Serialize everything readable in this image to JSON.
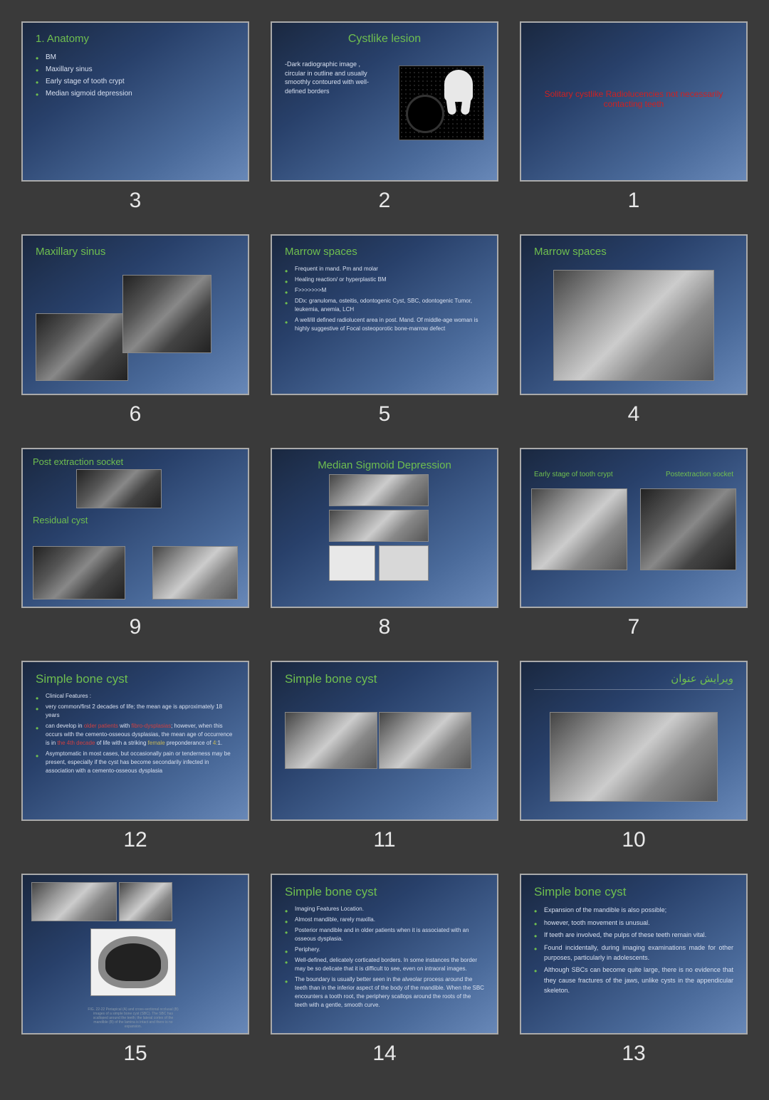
{
  "background": "#3a3a3a",
  "slide_gradient": [
    "#1a2840",
    "#28406a",
    "#4a6a9a",
    "#6888b8"
  ],
  "accent_green": "#6fbf4f",
  "accent_red": "#d02020",
  "slides": [
    {
      "n": 3,
      "title": "1. Anatomy",
      "bullets": [
        "BM",
        "Maxillary sinus",
        "Early stage of tooth crypt",
        "Median sigmoid depression"
      ]
    },
    {
      "n": 2,
      "title": "Cystlike lesion",
      "para": "-Dark radiographic image , circular in outline and usually smoothly contoured with well-defined borders"
    },
    {
      "n": 1,
      "red_text": "Solitary cystlike Radiolucencies not necessarily contacting teeth"
    },
    {
      "n": 6,
      "title": "Maxillary sinus"
    },
    {
      "n": 5,
      "title": "Marrow spaces",
      "bullets": [
        "Frequent in mand. Pm and molar",
        "Healing reaction/ or hyperplastic BM",
        "F>>>>>>>M",
        "DDx: granuloma, osteitis, odontogenic Cyst, SBC, odontogenic Tumor, leukemia, anemia, LCH",
        "A well/ill defined radiolucent area in post. Mand. Of middle-age woman is highly suggestive of Focal osteoporotic bone-marrow defect"
      ]
    },
    {
      "n": 4,
      "title": "Marrow spaces"
    },
    {
      "n": 9,
      "title_a": "Post extraction socket",
      "title_b": "Residual cyst"
    },
    {
      "n": 8,
      "title": "Median Sigmoid Depression"
    },
    {
      "n": 7,
      "label_a": "Early stage of tooth crypt",
      "label_b": "Postextraction socket"
    },
    {
      "n": 12,
      "title": "Simple  bone cyst",
      "lead": "Clinical Features :",
      "bullets": [
        "very common/first 2 decades of life; the mean age is approximately 18 years",
        "can develop in <span class='red-inline'>older patients</span> with <span class='red-inline'>fibro-dysplasias</span>; however, when this occurs with the cemento-osseous dysplasias, the mean age of occurrence is in <span class='red-inline'>the 4th decade</span> of life with a striking <span class='yellow-inline'>female</span> preponderance of <span class='yellow-inline'>4:</span>1.",
        "Asymptomatic in most cases, but occasionally pain or tenderness may be present, especially if the cyst has become secondarily infected in association with a cemento-osseous dysplasia"
      ]
    },
    {
      "n": 11,
      "title": "Simple  bone cyst"
    },
    {
      "n": 10,
      "title_rtl": "ویرایش عنوان"
    },
    {
      "n": 15,
      "caption": "FIG. 22-22 Periapical (A) and cross-sectional occlusal (B) images of a simple bone cyst (SBC). The SBC has scalloped around the teeth; the lateral cortex of the mandible (B) of the lamina is intact and there is no expansion."
    },
    {
      "n": 14,
      "title": "Simple  bone cyst",
      "bullets": [
        "Imaging Features Location.",
        "Almost mandible, rarely maxilla.",
        "Posterior mandible and in older patients when it is associated with an osseous dysplasia.",
        "Periphery.",
        "Well-defined, delicately corticated borders. In some instances the border may be so delicate that it is difficult to see, even on intraoral images.",
        "The boundary is usually better seen in the alveolar process around the teeth than in the inferior aspect of the body of the mandible. When the SBC encounters a tooth root, the periphery scallops around the roots of the teeth with a gentle, smooth curve."
      ]
    },
    {
      "n": 13,
      "title": "Simple  bone cyst",
      "bullets": [
        "Expansion of the mandible is also possible;",
        "however, tooth movement is unusual.",
        "If teeth are involved, the pulps of these teeth remain vital.",
        "Found incidentally, during imaging examinations made for other purposes, particularly in adolescents.",
        "Although SBCs can become quite large, there is no evidence that they cause fractures of the jaws, unlike cysts in the appendicular skeleton."
      ]
    }
  ]
}
